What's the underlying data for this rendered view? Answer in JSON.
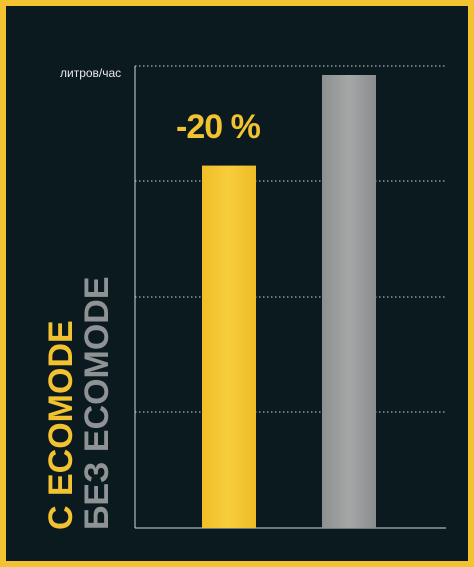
{
  "chart_data": {
    "type": "bar",
    "categories": [
      "С ECOMODE",
      "БЕЗ ECOMODE"
    ],
    "values": [
      80,
      100
    ],
    "ylabel": "литров/час",
    "annotation": "-20 %",
    "ylim": [
      0,
      100
    ],
    "grid": true,
    "colors": [
      "#f2c230",
      "#9a9c9c"
    ]
  },
  "labels": {
    "with_ecomode": "С ECOMODE",
    "without_ecomode": "БЕЗ ECOMODE"
  },
  "frame_color": "#f2c230",
  "background": "#0b1a1f"
}
